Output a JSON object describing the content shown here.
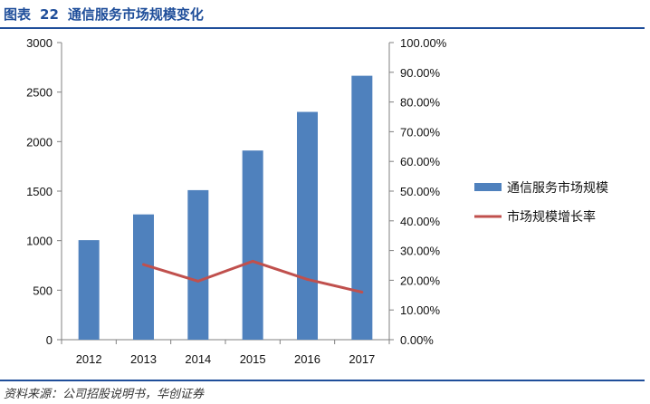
{
  "header": {
    "label": "图表",
    "number": "22",
    "title": "通信服务市场规模变化"
  },
  "source": "资料来源：公司招股说明书，华创证券",
  "colors": {
    "bar": "#4f81bd",
    "line": "#c0504d",
    "accent": "#1f4e9a"
  },
  "chart_data": {
    "type": "bar",
    "categories": [
      "2012",
      "2013",
      "2014",
      "2015",
      "2016",
      "2017"
    ],
    "series": [
      {
        "name": "通信服务市场规模",
        "type": "bar",
        "axis": "left",
        "values": [
          1005,
          1265,
          1510,
          1910,
          2300,
          2665
        ]
      },
      {
        "name": "市场规模增长率",
        "type": "line",
        "axis": "right",
        "values": [
          null,
          0.253,
          0.197,
          0.264,
          0.203,
          0.16
        ]
      }
    ],
    "y_left": {
      "range": [
        0,
        3000
      ],
      "ticks": [
        "0",
        "500",
        "1000",
        "1500",
        "2000",
        "2500",
        "3000"
      ]
    },
    "y_right": {
      "range": [
        0,
        1
      ],
      "ticks": [
        "0.00%",
        "10.00%",
        "20.00%",
        "30.00%",
        "40.00%",
        "50.00%",
        "60.00%",
        "70.00%",
        "80.00%",
        "90.00%",
        "100.00%"
      ]
    },
    "grid": false,
    "legend_position": "right"
  }
}
